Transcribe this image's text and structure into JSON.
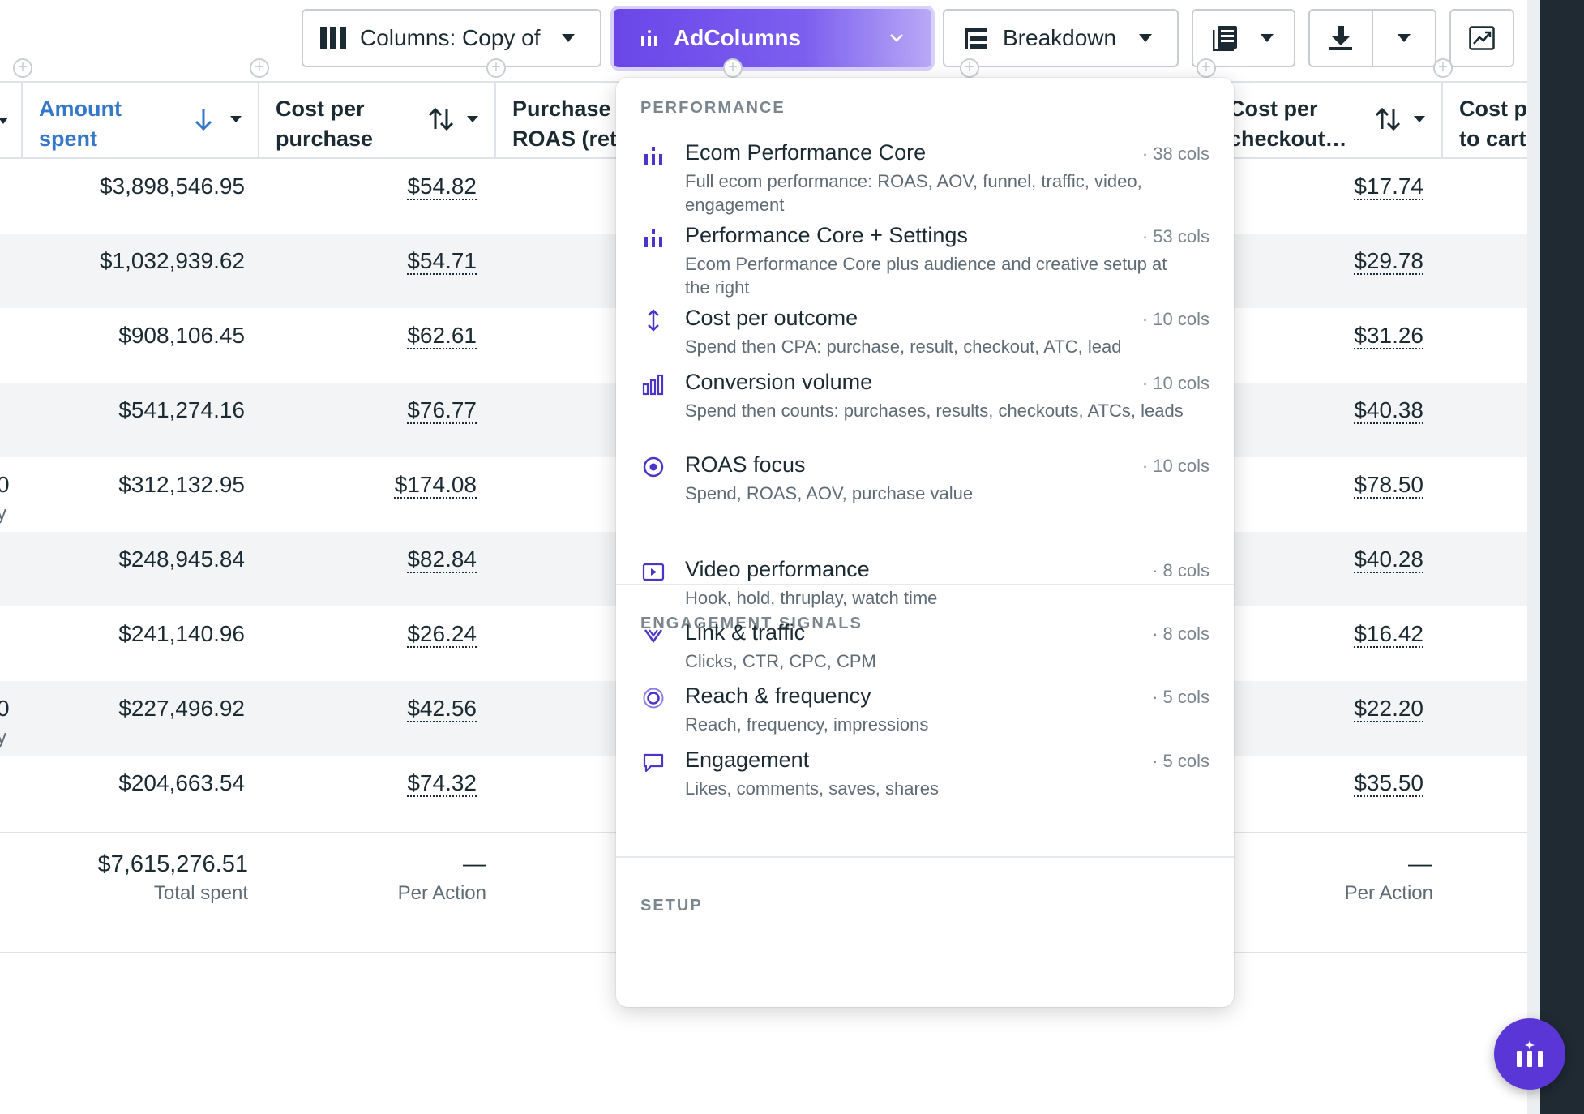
{
  "toolbar": {
    "columns_label": "Columns: Copy of",
    "adcolumns_label": "AdColumns",
    "breakdown_label": "Breakdown"
  },
  "table": {
    "headers": {
      "amount_spent": [
        "Amount",
        "spent"
      ],
      "cost_per_purchase": [
        "Cost per",
        "purchase"
      ],
      "purchase_roas": [
        "Purchase",
        "ROAS (ret"
      ],
      "cost_per_checkout": [
        "Cost per",
        "checkout…"
      ],
      "cost_per_atc": [
        "Cost p",
        "to cart"
      ]
    },
    "left_fragments": [
      {
        "row": 4,
        "text": "0",
        "sub": "y"
      },
      {
        "row": 7,
        "text": "0",
        "sub": "y"
      }
    ],
    "rows": [
      {
        "amount_spent": "$3,898,546.95",
        "cost_per_purchase": "$54.82",
        "cost_per_checkout": "$17.74"
      },
      {
        "amount_spent": "$1,032,939.62",
        "cost_per_purchase": "$54.71",
        "cost_per_checkout": "$29.78"
      },
      {
        "amount_spent": "$908,106.45",
        "cost_per_purchase": "$62.61",
        "cost_per_checkout": "$31.26"
      },
      {
        "amount_spent": "$541,274.16",
        "cost_per_purchase": "$76.77",
        "cost_per_checkout": "$40.38"
      },
      {
        "amount_spent": "$312,132.95",
        "cost_per_purchase": "$174.08",
        "cost_per_checkout": "$78.50"
      },
      {
        "amount_spent": "$248,945.84",
        "cost_per_purchase": "$82.84",
        "cost_per_checkout": "$40.28"
      },
      {
        "amount_spent": "$241,140.96",
        "cost_per_purchase": "$26.24",
        "cost_per_checkout": "$16.42"
      },
      {
        "amount_spent": "$227,496.92",
        "cost_per_purchase": "$42.56",
        "cost_per_checkout": "$22.20"
      },
      {
        "amount_spent": "$204,663.54",
        "cost_per_purchase": "$74.32",
        "cost_per_checkout": "$35.50"
      }
    ],
    "summary": {
      "amount_spent": "$7,615,276.51",
      "amount_spent_label": "Total spent",
      "cost_per_purchase": "—",
      "cost_per_purchase_label": "Per Action",
      "cost_per_checkout": "—",
      "cost_per_checkout_label": "Per Action"
    }
  },
  "dropdown": {
    "sections": [
      {
        "title": "PERFORMANCE",
        "items": [
          {
            "icon": "bar-columns-icon",
            "name": "Ecom Performance Core",
            "count": "· 38 cols",
            "desc": "Full ecom performance: ROAS, AOV, funnel, traffic, video, engagement"
          },
          {
            "icon": "bar-columns-icon",
            "name": "Performance Core + Settings",
            "count": "· 53 cols",
            "desc": "Ecom Performance Core plus audience and creative setup at the right"
          },
          {
            "icon": "vertical-arrows-icon",
            "name": "Cost per outcome",
            "count": "· 10 cols",
            "desc": "Spend then CPA: purchase, result, checkout, ATC, lead"
          },
          {
            "icon": "bar-chart-icon",
            "name": "Conversion volume",
            "count": "· 10 cols",
            "desc": "Spend then counts: purchases, results, checkouts, ATCs, leads"
          },
          {
            "icon": "target-icon",
            "name": "ROAS focus",
            "count": "· 10 cols",
            "desc": "Spend, ROAS, AOV, purchase value"
          }
        ]
      },
      {
        "title": "ENGAGEMENT SIGNALS",
        "items": [
          {
            "icon": "video-play-icon",
            "name": "Video performance",
            "count": "· 8 cols",
            "desc": "Hook, hold, thruplay, watch time"
          },
          {
            "icon": "click-chevron-icon",
            "name": "Link & traffic",
            "count": "· 8 cols",
            "desc": "Clicks, CTR, CPC, CPM"
          },
          {
            "icon": "reach-circle-icon",
            "name": "Reach & frequency",
            "count": "· 5 cols",
            "desc": "Reach, frequency, impressions"
          },
          {
            "icon": "comment-icon",
            "name": "Engagement",
            "count": "· 5 cols",
            "desc": "Likes, comments, saves, shares"
          }
        ]
      },
      {
        "title": "SETUP",
        "items": []
      }
    ]
  },
  "colors": {
    "accent": "#6a46e8",
    "sort_blue": "#3577c9",
    "text": "#1c2b33",
    "muted": "#5f6b75",
    "icon_purple": "#4a35c8",
    "fab": "#5b36d6"
  }
}
